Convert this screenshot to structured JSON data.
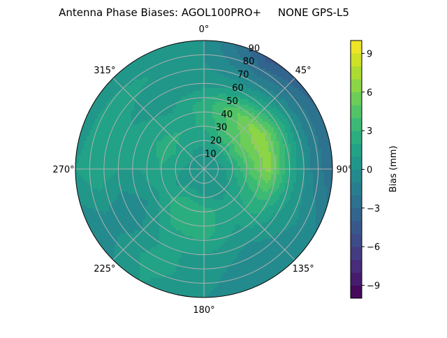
{
  "chart_data": {
    "type": "heatmap",
    "projection": "polar",
    "title": "Antenna Phase Biases: AGOL100PRO+     NONE GPS-L5",
    "theta_direction": "clockwise",
    "theta_zero": "north",
    "theta_tick_labels": [
      "0°",
      "45°",
      "90°",
      "135°",
      "180°",
      "225°",
      "270°",
      "315°"
    ],
    "r_tick_labels": [
      "10",
      "20",
      "30",
      "40",
      "50",
      "60",
      "70",
      "80",
      "90"
    ],
    "r_range": [
      0,
      90
    ],
    "grid": true,
    "colormap": "viridis",
    "colorbar": {
      "label": "Bias (mm)",
      "range": [
        -10,
        10
      ],
      "levels_step": 1,
      "tick_labels": [
        "−9",
        "−6",
        "−3",
        "0",
        "3",
        "6",
        "9"
      ],
      "tick_values": [
        -9,
        -6,
        -3,
        0,
        3,
        6,
        9
      ]
    },
    "grid_color": "#b0b0b0",
    "azimuths": [
      0,
      30,
      60,
      90,
      120,
      150,
      180,
      210,
      240,
      270,
      300,
      330
    ],
    "zeniths": [
      0,
      15,
      30,
      45,
      60,
      75,
      90
    ],
    "values_mm": [
      [
        0,
        0,
        0,
        0,
        0,
        0,
        0,
        0,
        0,
        0,
        0,
        0
      ],
      [
        1,
        1.5,
        1.5,
        1,
        0.5,
        0,
        0.5,
        1,
        0.5,
        1,
        1.5,
        1
      ],
      [
        2,
        4,
        5,
        4,
        2,
        1.5,
        2.5,
        3,
        1.5,
        2,
        2.5,
        2
      ],
      [
        2.5,
        5,
        7,
        6.5,
        3,
        1,
        2.5,
        2,
        0,
        1,
        1.5,
        1
      ],
      [
        0.5,
        1,
        3,
        2,
        1,
        0,
        1,
        1,
        -1,
        1,
        1,
        0
      ],
      [
        0,
        -2,
        -1,
        -1,
        0,
        -1,
        0.5,
        1.5,
        -0.5,
        2,
        2,
        1
      ],
      [
        0,
        -4.5,
        -3,
        -3,
        -1,
        -1,
        0,
        1,
        -1,
        1,
        0,
        0
      ]
    ]
  }
}
